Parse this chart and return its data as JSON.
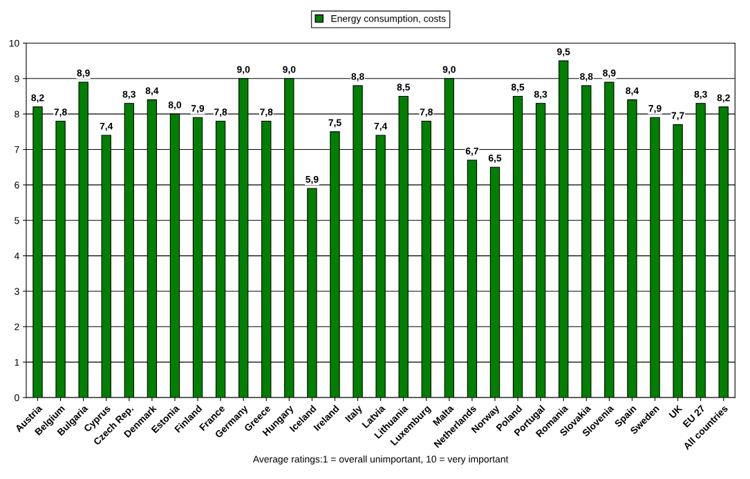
{
  "chart_data": {
    "type": "bar",
    "xlabel": "Average ratings:1 = overall unimportant, 10 = very important",
    "categories": [
      "Austria",
      "Belgium",
      "Bulgaria",
      "Cyprus",
      "Czech Rep.",
      "Denmark",
      "Estonia",
      "Finland",
      "France",
      "Germany",
      "Greece",
      "Hungary",
      "Iceland",
      "Ireland",
      "Italy",
      "Latvia",
      "Lithuania",
      "Luxemburg",
      "Malta",
      "Netherlands",
      "Norway",
      "Poland",
      "Portugal",
      "Romania",
      "Slovakia",
      "Slovenia",
      "Spain",
      "Sweden",
      "UK",
      "EU 27",
      "All countries"
    ],
    "series": [
      {
        "name": "Energy consumption, costs",
        "color": "#008000",
        "values": [
          8.2,
          7.8,
          8.9,
          7.4,
          8.3,
          8.4,
          8.0,
          7.9,
          7.8,
          9.0,
          7.8,
          9.0,
          5.9,
          7.5,
          8.8,
          7.4,
          8.5,
          7.8,
          9.0,
          6.7,
          6.5,
          8.5,
          8.3,
          9.5,
          8.8,
          8.9,
          8.4,
          7.9,
          7.7,
          8.3,
          8.2
        ],
        "value_labels": [
          "8,2",
          "7,8",
          "8,9",
          "7,4",
          "8,3",
          "8,4",
          "8,0",
          "7,9",
          "7,8",
          "9,0",
          "7,8",
          "9,0",
          "5,9",
          "7,5",
          "8,8",
          "7,4",
          "8,5",
          "7,8",
          "9,0",
          "6,7",
          "6,5",
          "8,5",
          "8,3",
          "9,5",
          "8,8",
          "8,9",
          "8,4",
          "7,9",
          "7,7",
          "8,3",
          "8,2"
        ]
      }
    ],
    "ylim": [
      0,
      10
    ],
    "yticks": [
      0,
      1,
      2,
      3,
      4,
      5,
      6,
      7,
      8,
      9,
      10
    ],
    "grid": "y",
    "legend": "top"
  }
}
